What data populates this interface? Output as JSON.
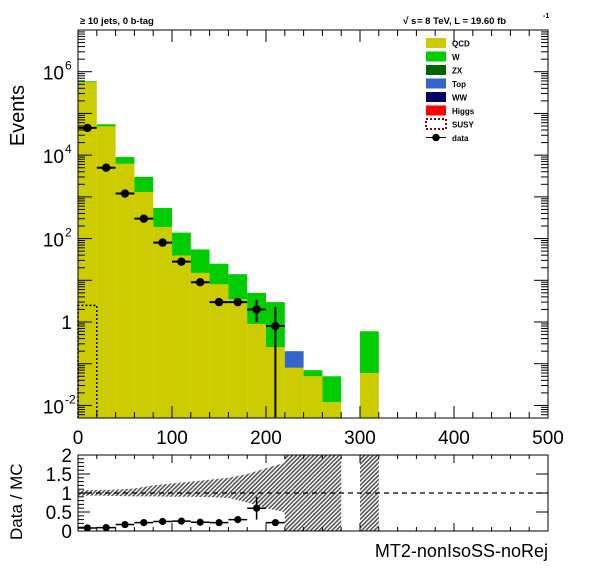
{
  "header": {
    "left": "≥ 10 jets, 0 b-tag",
    "right_sqrt": "s",
    "right_rest": " = 8 TeV, L = 19.60 fb",
    "right_sup": "-1"
  },
  "colors": {
    "QCD": "#cccc00",
    "W": "#00cc00",
    "ZX": "#006600",
    "Top": "#3366cc",
    "WW": "#000066",
    "Higgs": "#ff0000",
    "SUSY": "#8b0000",
    "data": "#000000",
    "band": "#555555"
  },
  "chart_data": [
    {
      "type": "bar",
      "stacked": true,
      "log_y": true,
      "title": "",
      "xlabel": "",
      "ylabel": "Events",
      "xlim": [
        0,
        500
      ],
      "ylim": [
        0.005,
        10000000
      ],
      "x_ticks": [
        0,
        100,
        200,
        300,
        400,
        500
      ],
      "y_ticks": [
        {
          "value": 0.01,
          "base": "10",
          "exp": "-2"
        },
        {
          "value": 1,
          "base": "1",
          "exp": ""
        },
        {
          "value": 100,
          "base": "10",
          "exp": "2"
        },
        {
          "value": 10000,
          "base": "10",
          "exp": "4"
        },
        {
          "value": 1000000,
          "base": "10",
          "exp": "6"
        }
      ],
      "bin_edges": [
        0,
        20,
        40,
        60,
        80,
        100,
        120,
        140,
        160,
        180,
        200,
        220,
        240,
        260,
        280,
        300,
        320,
        340,
        360,
        380,
        400,
        420,
        440,
        460,
        480,
        500
      ],
      "series": [
        {
          "name": "QCD",
          "values": [
            560000,
            49000,
            6200,
            1300,
            190,
            39,
            15,
            8,
            3.5,
            0.9,
            0.25,
            0.08,
            0.05,
            0.012,
            0,
            0.06,
            0,
            0,
            0,
            0,
            0,
            0,
            0,
            0,
            0
          ]
        },
        {
          "name": "W",
          "values": [
            30000,
            6000,
            2800,
            1700,
            350,
            100,
            40,
            17,
            10.5,
            4.1,
            2.75,
            0,
            0.02,
            0.038,
            0,
            0.54,
            0,
            0,
            0,
            0,
            0,
            0,
            0,
            0,
            0
          ]
        },
        {
          "name": "ZX",
          "values": [
            0,
            0,
            0,
            0,
            0,
            0,
            0,
            0,
            0,
            0,
            0,
            0,
            0,
            0,
            0,
            0,
            0,
            0,
            0,
            0,
            0,
            0,
            0,
            0,
            0
          ]
        },
        {
          "name": "Top",
          "values": [
            0,
            0,
            0,
            0,
            0,
            0,
            0,
            0,
            0,
            0,
            0,
            0.12,
            0,
            0,
            0,
            0,
            0,
            0,
            0,
            0,
            0,
            0,
            0,
            0,
            0
          ]
        },
        {
          "name": "WW",
          "values": [
            0,
            0,
            0,
            0,
            0,
            0,
            0,
            0,
            0,
            0,
            0,
            0,
            0,
            0,
            0,
            0,
            0,
            0,
            0,
            0,
            0,
            0,
            0,
            0,
            0
          ]
        },
        {
          "name": "Higgs",
          "values": [
            0,
            0,
            0,
            0,
            0,
            0,
            0,
            0,
            0,
            0,
            0,
            0,
            0,
            0,
            0,
            0,
            0,
            0,
            0,
            0,
            0,
            0,
            0,
            0,
            0
          ]
        }
      ],
      "susy": {
        "name": "SUSY",
        "x_range": [
          0,
          20
        ],
        "value": 2.5
      },
      "data": {
        "name": "data",
        "x": [
          10,
          30,
          50,
          70,
          90,
          110,
          130,
          150,
          170,
          190,
          210
        ],
        "y": [
          45000,
          5000,
          1200,
          300,
          80,
          28,
          9,
          3,
          3,
          2,
          0.8
        ],
        "yerr_low": [
          0,
          0,
          0,
          0,
          0,
          0,
          0,
          0,
          0,
          1.0,
          0.8
        ],
        "yerr_high": [
          0,
          0,
          0,
          0,
          0,
          0,
          0,
          0,
          0,
          1.4,
          1.5
        ]
      },
      "legend": {
        "placement": "top-right",
        "entries": [
          "QCD",
          "W",
          "ZX",
          "Top",
          "WW",
          "Higgs",
          "SUSY",
          "data"
        ]
      }
    },
    {
      "type": "scatter",
      "title": "",
      "xlabel": "MT2-nonIsoSS-noRej",
      "ylabel": "Data / MC",
      "xlim": [
        0,
        500
      ],
      "ylim": [
        0,
        2
      ],
      "y_ticks": [
        "0",
        "0.5",
        "1",
        "1.5",
        "2"
      ],
      "reference_line": 1,
      "band": {
        "x": [
          0,
          20,
          40,
          60,
          80,
          100,
          120,
          140,
          160,
          180,
          200,
          220
        ],
        "low": [
          0.93,
          0.93,
          0.92,
          0.91,
          0.91,
          0.9,
          0.9,
          0.89,
          0.87,
          0.75,
          0.6,
          0.5
        ],
        "high": [
          1.07,
          1.08,
          1.09,
          1.12,
          1.2,
          1.25,
          1.3,
          1.35,
          1.4,
          1.5,
          1.65,
          1.8
        ]
      },
      "full_bands": [
        [
          220,
          280
        ],
        [
          300,
          320
        ]
      ],
      "data": {
        "x": [
          10,
          30,
          50,
          70,
          90,
          110,
          130,
          150,
          170,
          190,
          210
        ],
        "y": [
          0.08,
          0.09,
          0.17,
          0.22,
          0.25,
          0.26,
          0.23,
          0.22,
          0.3,
          0.6,
          0.22
        ],
        "yerr": [
          0,
          0,
          0,
          0,
          0,
          0,
          0,
          0,
          0.05,
          0.3,
          0
        ]
      }
    }
  ]
}
